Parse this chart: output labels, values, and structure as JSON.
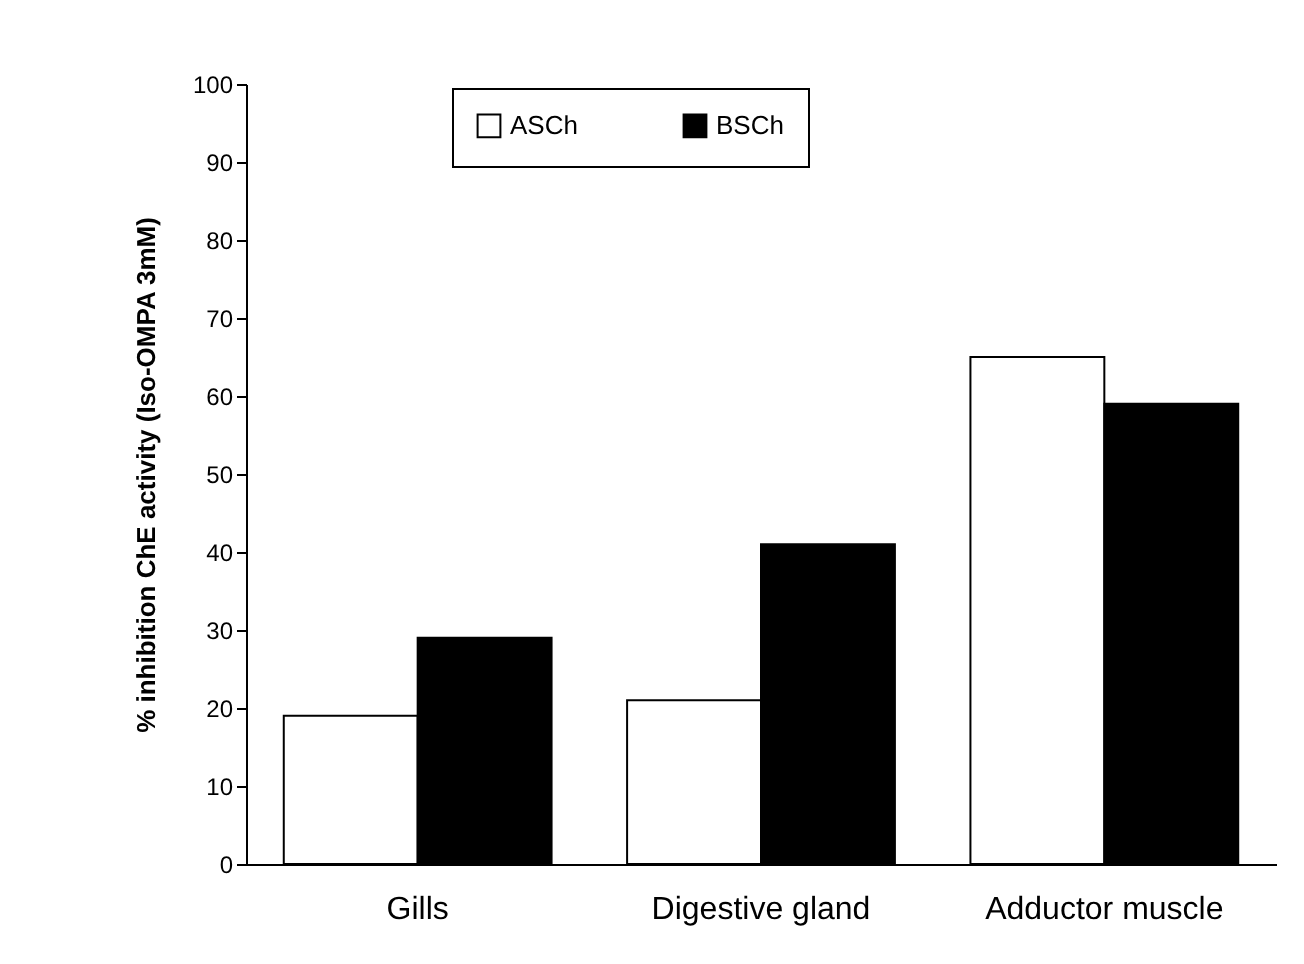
{
  "chart_data": {
    "type": "bar",
    "ylabel": "% inhibition ChE activity (Iso-OMPA 3mM)",
    "categories": [
      "Gills",
      "Digestive gland",
      "Adductor muscle"
    ],
    "series": [
      {
        "name": "ASCh",
        "color": "#ffffff",
        "values": [
          19,
          21,
          65
        ]
      },
      {
        "name": "BSCh",
        "color": "#000000",
        "values": [
          29,
          41,
          59
        ]
      }
    ],
    "ylim": [
      0,
      100
    ],
    "yticks": [
      0,
      10,
      20,
      30,
      40,
      50,
      60,
      70,
      80,
      90,
      100
    ],
    "grid": false,
    "legend": "top"
  }
}
